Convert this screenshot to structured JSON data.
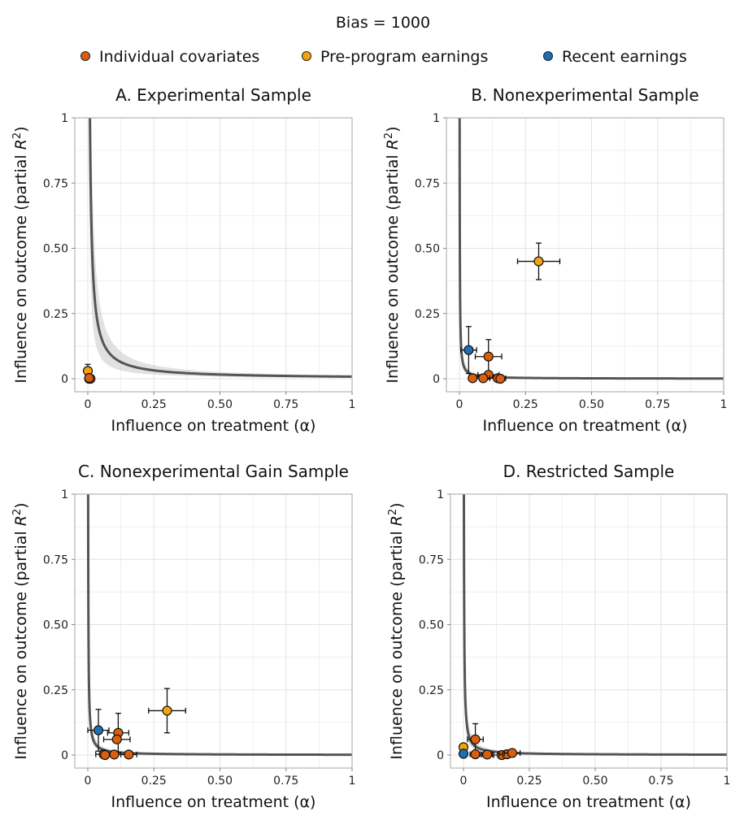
{
  "figure": {
    "title": "Bias = 1000",
    "legend": [
      {
        "label": "Individual covariates",
        "color": "#D95F0E"
      },
      {
        "label": "Pre-program earnings",
        "color": "#F2A30F"
      },
      {
        "label": "Recent earnings",
        "color": "#1F6FB5"
      }
    ],
    "legend_placement": "top"
  },
  "chart_data": [
    {
      "type": "scatter",
      "title": "A. Experimental Sample",
      "xlabel": "Influence on treatment (α)",
      "ylabel": "Influence on outcome (partial R²)",
      "xlim": [
        0,
        1
      ],
      "ylim": [
        0,
        1
      ],
      "xticks": [
        "0",
        "0.25",
        "0.50",
        "0.75",
        "1"
      ],
      "yticks": [
        "0",
        "0.25",
        "0.50",
        "0.75",
        "1"
      ],
      "grid": true,
      "curve": {
        "k": 0.008,
        "color": "#555555"
      },
      "band": {
        "k_low": 0.004,
        "k_high": 0.013
      },
      "points": [
        {
          "group": "Pre-program earnings",
          "x": 0.0,
          "y": 0.03,
          "x_err": 0.0,
          "y_err": 0.025
        },
        {
          "group": "Recent earnings",
          "x": 0.005,
          "y": 0.0,
          "x_err": 0.0,
          "y_err": 0.0
        },
        {
          "group": "Individual covariates",
          "x": 0.01,
          "y": 0.0,
          "x_err": 0.0,
          "y_err": 0.0
        },
        {
          "group": "Individual covariates",
          "x": 0.005,
          "y": 0.003,
          "x_err": 0.0,
          "y_err": 0.0
        }
      ]
    },
    {
      "type": "scatter",
      "title": "B. Nonexperimental Sample",
      "xlabel": "Influence on treatment (α)",
      "ylabel": "Influence on outcome (partial R²)",
      "xlim": [
        0,
        1
      ],
      "ylim": [
        0,
        1
      ],
      "xticks": [
        "0",
        "0.25",
        "0.50",
        "0.75",
        "1"
      ],
      "yticks": [
        "0",
        "0.25",
        "0.50",
        "0.75",
        "1"
      ],
      "grid": true,
      "curve": {
        "k": 0.0008,
        "color": "#555555"
      },
      "band": {
        "k_low": 0.0005,
        "k_high": 0.0012
      },
      "points": [
        {
          "group": "Pre-program earnings",
          "x": 0.3,
          "y": 0.45,
          "x_err": 0.08,
          "y_err": 0.07
        },
        {
          "group": "Recent earnings",
          "x": 0.035,
          "y": 0.11,
          "x_err": 0.03,
          "y_err": 0.09
        },
        {
          "group": "Individual covariates",
          "x": 0.11,
          "y": 0.085,
          "x_err": 0.05,
          "y_err": 0.065
        },
        {
          "group": "Individual covariates",
          "x": 0.11,
          "y": 0.015,
          "x_err": 0.04,
          "y_err": 0.0
        },
        {
          "group": "Individual covariates",
          "x": 0.09,
          "y": 0.002,
          "x_err": 0.04,
          "y_err": 0.0
        },
        {
          "group": "Individual covariates",
          "x": 0.05,
          "y": 0.002,
          "x_err": 0.0,
          "y_err": 0.0
        },
        {
          "group": "Individual covariates",
          "x": 0.145,
          "y": 0.002,
          "x_err": 0.03,
          "y_err": 0.0
        },
        {
          "group": "Individual covariates",
          "x": 0.155,
          "y": 0.0,
          "x_err": 0.0,
          "y_err": 0.0
        }
      ]
    },
    {
      "type": "scatter",
      "title": "C. Nonexperimental Gain Sample",
      "xlabel": "Influence on treatment (α)",
      "ylabel": "Influence on outcome (partial R²)",
      "xlim": [
        0,
        1
      ],
      "ylim": [
        0,
        1
      ],
      "xticks": [
        "0",
        "0.25",
        "0.50",
        "0.75",
        "1"
      ],
      "yticks": [
        "0",
        "0.25",
        "0.50",
        "0.75",
        "1"
      ],
      "grid": true,
      "curve": {
        "k": 0.0012,
        "color": "#555555"
      },
      "band": {
        "k_low": 0.0008,
        "k_high": 0.0018
      },
      "points": [
        {
          "group": "Pre-program earnings",
          "x": 0.3,
          "y": 0.17,
          "x_err": 0.07,
          "y_err": 0.085
        },
        {
          "group": "Recent earnings",
          "x": 0.04,
          "y": 0.095,
          "x_err": 0.04,
          "y_err": 0.08
        },
        {
          "group": "Individual covariates",
          "x": 0.115,
          "y": 0.085,
          "x_err": 0.04,
          "y_err": 0.075
        },
        {
          "group": "Individual covariates",
          "x": 0.11,
          "y": 0.06,
          "x_err": 0.05,
          "y_err": 0.0
        },
        {
          "group": "Individual covariates",
          "x": 0.06,
          "y": 0.003,
          "x_err": 0.03,
          "y_err": 0.0
        },
        {
          "group": "Individual covariates",
          "x": 0.1,
          "y": 0.002,
          "x_err": 0.04,
          "y_err": 0.0
        },
        {
          "group": "Individual covariates",
          "x": 0.155,
          "y": 0.002,
          "x_err": 0.03,
          "y_err": 0.0
        },
        {
          "group": "Individual covariates",
          "x": 0.065,
          "y": 0.0,
          "x_err": 0.0,
          "y_err": 0.0
        }
      ]
    },
    {
      "type": "scatter",
      "title": "D. Restricted Sample",
      "xlabel": "Influence on treatment (α)",
      "ylabel": "Influence on outcome (partial R²)",
      "xlim": [
        0,
        1
      ],
      "ylim": [
        0,
        1
      ],
      "xticks": [
        "0",
        "0.25",
        "0.50",
        "0.75",
        "1"
      ],
      "yticks": [
        "0",
        "0.25",
        "0.50",
        "0.75",
        "1"
      ],
      "grid": true,
      "curve": {
        "k": 0.0015,
        "color": "#555555"
      },
      "band": {
        "k_low": 0.0009,
        "k_high": 0.0024
      },
      "points": [
        {
          "group": "Pre-program earnings",
          "x": 0.0,
          "y": 0.03,
          "x_err": 0.0,
          "y_err": 0.0
        },
        {
          "group": "Recent earnings",
          "x": 0.0,
          "y": 0.005,
          "x_err": 0.0,
          "y_err": 0.0
        },
        {
          "group": "Individual covariates",
          "x": 0.045,
          "y": 0.06,
          "x_err": 0.03,
          "y_err": 0.06
        },
        {
          "group": "Individual covariates",
          "x": 0.045,
          "y": 0.003,
          "x_err": 0.02,
          "y_err": 0.0
        },
        {
          "group": "Individual covariates",
          "x": 0.09,
          "y": 0.002,
          "x_err": 0.02,
          "y_err": 0.0
        },
        {
          "group": "Individual covariates",
          "x": 0.145,
          "y": 0.0,
          "x_err": 0.03,
          "y_err": 0.0
        },
        {
          "group": "Individual covariates",
          "x": 0.165,
          "y": 0.003,
          "x_err": 0.03,
          "y_err": 0.0
        },
        {
          "group": "Individual covariates",
          "x": 0.185,
          "y": 0.008,
          "x_err": 0.03,
          "y_err": 0.0
        }
      ]
    }
  ]
}
